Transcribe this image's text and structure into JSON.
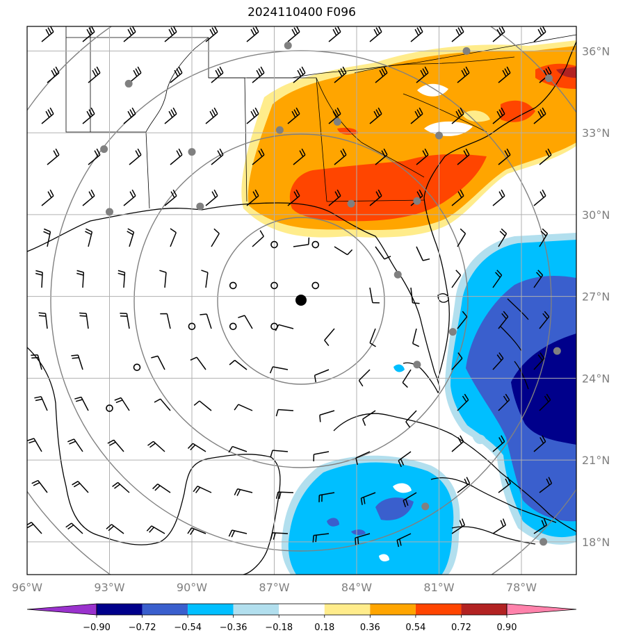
{
  "title": "2024110400 F096",
  "map": {
    "lon_range": [
      -96,
      -76
    ],
    "lat_range": [
      16.8,
      36.9
    ],
    "lon_ticks": [
      "96°W",
      "93°W",
      "90°W",
      "87°W",
      "84°W",
      "81°W",
      "78°W"
    ],
    "lat_ticks": [
      "36°N",
      "33°N",
      "30°N",
      "27°N",
      "24°N",
      "21°N",
      "18°N"
    ],
    "center": {
      "lon": -86.0,
      "lat": 26.9
    },
    "range_rings_deg": [
      3,
      6,
      9,
      12
    ],
    "grid": true,
    "calm_markers": [
      {
        "lon": -87.0,
        "lat": 28.9
      },
      {
        "lon": -85.5,
        "lat": 28.9
      },
      {
        "lon": -88.5,
        "lat": 27.4
      },
      {
        "lon": -87.0,
        "lat": 27.4
      },
      {
        "lon": -85.5,
        "lat": 27.4
      },
      {
        "lon": -90.0,
        "lat": 25.9
      },
      {
        "lon": -88.5,
        "lat": 25.9
      },
      {
        "lon": -87.0,
        "lat": 25.9
      },
      {
        "lon": -92.0,
        "lat": 24.4
      },
      {
        "lon": -93.0,
        "lat": 22.9
      }
    ],
    "station_dots": [
      {
        "lon": -86.5,
        "lat": 36.2
      },
      {
        "lon": -80.0,
        "lat": 36.0
      },
      {
        "lon": -93.2,
        "lat": 32.4
      },
      {
        "lon": -90.0,
        "lat": 32.3
      },
      {
        "lon": -86.8,
        "lat": 33.1
      },
      {
        "lon": -84.7,
        "lat": 33.4
      },
      {
        "lon": -81.0,
        "lat": 32.9
      },
      {
        "lon": -93.0,
        "lat": 30.1
      },
      {
        "lon": -89.7,
        "lat": 30.3
      },
      {
        "lon": -84.2,
        "lat": 30.4
      },
      {
        "lon": -81.8,
        "lat": 30.5
      },
      {
        "lon": -82.5,
        "lat": 27.8
      },
      {
        "lon": -80.5,
        "lat": 25.7
      },
      {
        "lon": -81.8,
        "lat": 24.5
      },
      {
        "lon": -76.7,
        "lat": 25.0
      },
      {
        "lon": -81.5,
        "lat": 19.3
      },
      {
        "lon": -77.2,
        "lat": 18.0
      },
      {
        "lon": -77.0,
        "lat": 35.0
      },
      {
        "lon": -92.3,
        "lat": 34.8
      }
    ]
  },
  "colorbar": {
    "labels": [
      "−0.90",
      "−0.72",
      "−0.54",
      "−0.36",
      "−0.18",
      "0.18",
      "0.36",
      "0.54",
      "0.72",
      "0.90"
    ],
    "colors": [
      "#9a32cd",
      "#00008b",
      "#3a5fcd",
      "#00bfff",
      "#b2dfee",
      "#ffffff",
      "#ffec8b",
      "#ffa500",
      "#ff4500",
      "#b22222",
      "#ff82ab"
    ]
  },
  "fill_colors": {
    "pos1": "#ffec8b",
    "pos2": "#ffa500",
    "pos3": "#ff4500",
    "pos4": "#b22222",
    "neg1": "#b2dfee",
    "neg2": "#00bfff",
    "neg3": "#3a5fcd",
    "neg4": "#00008b"
  }
}
